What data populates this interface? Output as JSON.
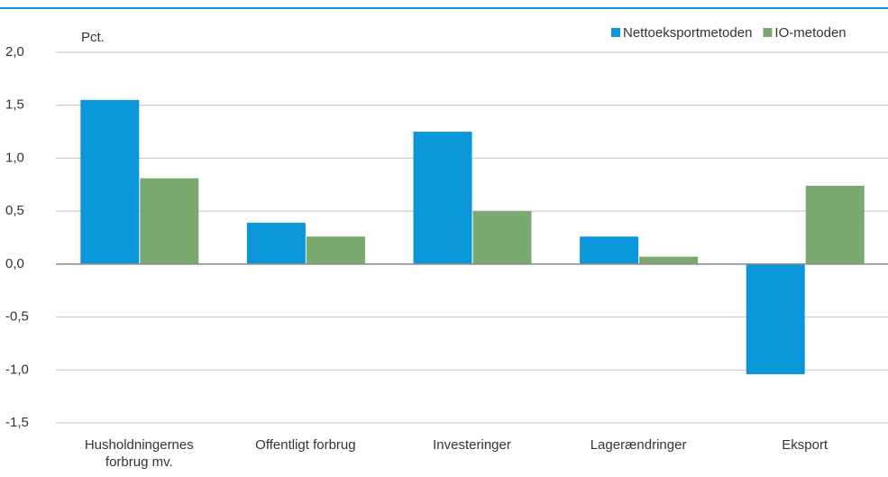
{
  "chart_data": {
    "type": "bar",
    "y_label": "Pct.",
    "categories": [
      "Husholdningernes forbrug mv.",
      "Offentligt forbrug",
      "Investeringer",
      "Lagerændringer",
      "Eksport"
    ],
    "series": [
      {
        "name": "Nettoeksportmetoden",
        "color": "#0a96d8",
        "values": [
          1.55,
          0.39,
          1.25,
          0.26,
          -1.04
        ]
      },
      {
        "name": "IO-metoden",
        "color": "#79a96f",
        "values": [
          0.81,
          0.26,
          0.5,
          0.07,
          0.74
        ]
      }
    ],
    "ylim": [
      -1.5,
      2.0
    ],
    "yticks": [
      {
        "value": -1.5,
        "label": "-1,5"
      },
      {
        "value": -1.0,
        "label": "-1,0"
      },
      {
        "value": -0.5,
        "label": "-0,5"
      },
      {
        "value": 0,
        "label": "0,0"
      },
      {
        "value": 0.5,
        "label": "0,5"
      },
      {
        "value": 1.0,
        "label": "1,0"
      },
      {
        "value": 1.5,
        "label": "1,5"
      },
      {
        "value": 2.0,
        "label": "2,0"
      }
    ],
    "grid": true,
    "legend": "top-right"
  }
}
